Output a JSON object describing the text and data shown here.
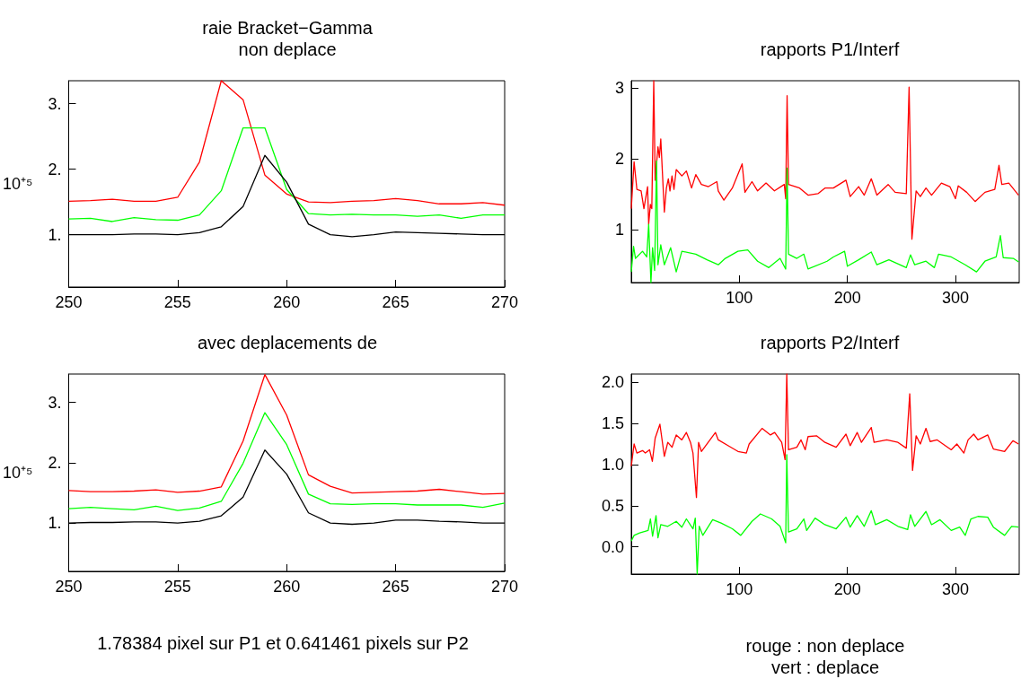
{
  "chart_data": [
    {
      "type": "line",
      "title": "raie Bracket−Gamma\nnon deplace",
      "ylabel": "10⁺⁵",
      "marker": "none",
      "x": [
        250,
        251,
        252,
        253,
        254,
        255,
        256,
        257,
        258,
        259,
        260,
        261,
        262,
        263,
        264,
        265,
        266,
        267,
        268,
        269,
        270
      ],
      "xlim": [
        250,
        270
      ],
      "xticks": [
        250,
        255,
        260,
        265,
        270
      ],
      "ylim": [
        0.2,
        3.35
      ],
      "yticks": [
        {
          "value": 1,
          "label": "1."
        },
        {
          "value": 2,
          "label": "2."
        },
        {
          "value": 3,
          "label": "3."
        }
      ],
      "series": [
        {
          "color": "#ff0000",
          "values": [
            1.51,
            1.52,
            1.54,
            1.51,
            1.51,
            1.57,
            2.11,
            3.35,
            3.06,
            1.91,
            1.62,
            1.5,
            1.49,
            1.51,
            1.52,
            1.55,
            1.52,
            1.47,
            1.47,
            1.49,
            1.45
          ]
        },
        {
          "color": "#00ff00",
          "values": [
            1.24,
            1.25,
            1.2,
            1.26,
            1.23,
            1.22,
            1.3,
            1.67,
            2.63,
            2.63,
            1.69,
            1.32,
            1.3,
            1.31,
            1.3,
            1.3,
            1.28,
            1.3,
            1.25,
            1.3,
            1.3
          ]
        },
        {
          "color": "#000000",
          "values": [
            1.0,
            1.0,
            1.0,
            1.01,
            1.01,
            1.0,
            1.03,
            1.12,
            1.43,
            2.21,
            1.8,
            1.16,
            1.0,
            0.97,
            1.0,
            1.04,
            1.03,
            1.02,
            1.01,
            1.0,
            1.0
          ]
        }
      ]
    },
    {
      "type": "line",
      "title": "rapports P1/Interf",
      "marker": "none",
      "xlim": [
        0,
        359
      ],
      "xticks": [
        100,
        200,
        300
      ],
      "ylim": [
        0.26,
        3.1
      ],
      "yticks": [
        1,
        2,
        3
      ],
      "series": [
        {
          "color": "#ff0000",
          "x": [
            0,
            2.6,
            5.2,
            9.1,
            11.7,
            15.1,
            16.1,
            17.7,
            19,
            20.8,
            22.1,
            24.7,
            26,
            27.3,
            30.6,
            32.5,
            34.3,
            35.8,
            37.7,
            39.5,
            41.6,
            46.8,
            51,
            55.8,
            59.7,
            64.9,
            71.4,
            79.2,
            80.5,
            85.7,
            93.5,
            102.6,
            105.2,
            111.7,
            116.9,
            124.7,
            132.5,
            141.6,
            142.9,
            144.2,
            145.5,
            155.8,
            163.6,
            172.7,
            179.2,
            187,
            198.7,
            202.6,
            210.4,
            215.6,
            222.1,
            227.3,
            237.7,
            244.2,
            254.5,
            257.1,
            259.7,
            263.6,
            267.5,
            272.7,
            277.9,
            287,
            294.8,
            300,
            302.6,
            310.4,
            318.2,
            327.3,
            336.4,
            340.3,
            342.9,
            349.4,
            358.4
          ],
          "values": [
            1.3,
            1.96,
            1.57,
            1.55,
            1.3,
            1.61,
            1.08,
            1.36,
            1.3,
            3.1,
            1.7,
            2.17,
            2.02,
            2.28,
            1.25,
            1.59,
            1.72,
            1.55,
            1.76,
            1.57,
            1.85,
            1.76,
            1.83,
            1.59,
            1.78,
            1.64,
            1.61,
            1.68,
            1.55,
            1.42,
            1.59,
            1.93,
            1.53,
            1.68,
            1.55,
            1.66,
            1.55,
            1.64,
            1.44,
            2.89,
            1.64,
            1.59,
            1.49,
            1.51,
            1.59,
            1.59,
            1.7,
            1.47,
            1.61,
            1.49,
            1.72,
            1.49,
            1.64,
            1.53,
            1.51,
            3.01,
            0.87,
            1.55,
            1.47,
            1.59,
            1.49,
            1.66,
            1.61,
            1.44,
            1.62,
            1.53,
            1.4,
            1.53,
            1.57,
            1.91,
            1.64,
            1.66,
            1.49
          ]
        },
        {
          "color": "#00ff00",
          "x": [
            0,
            2.1,
            3.9,
            10.4,
            14.3,
            16.1,
            18.2,
            19.7,
            21.6,
            23.4,
            24.7,
            27.3,
            30.6,
            36.4,
            41.6,
            46.8,
            59.7,
            70.1,
            80.5,
            87,
            98.7,
            107.8,
            116.9,
            127.3,
            137.7,
            142.9,
            144.2,
            145.5,
            153.2,
            159.7,
            163.6,
            181.2,
            187,
            197.4,
            200,
            210.4,
            222.1,
            227.3,
            238.4,
            254.5,
            258.4,
            262.3,
            272.7,
            280.5,
            284.4,
            296.1,
            309.1,
            319.5,
            327.3,
            337.7,
            341.6,
            344.2,
            353.5,
            358.4
          ],
          "values": [
            0.41,
            0.77,
            0.6,
            0.7,
            0.62,
            1.08,
            0.26,
            0.75,
            0.43,
            1.97,
            0.51,
            0.79,
            0.51,
            0.75,
            0.41,
            0.7,
            0.66,
            0.58,
            0.51,
            0.6,
            0.7,
            0.72,
            0.56,
            0.47,
            0.6,
            0.45,
            1.87,
            0.66,
            0.6,
            0.66,
            0.45,
            0.56,
            0.62,
            0.7,
            0.49,
            0.58,
            0.69,
            0.51,
            0.58,
            0.47,
            0.65,
            0.51,
            0.56,
            0.47,
            0.66,
            0.62,
            0.51,
            0.41,
            0.56,
            0.62,
            0.92,
            0.61,
            0.6,
            0.55
          ]
        }
      ]
    },
    {
      "type": "line",
      "title": "avec deplacements de",
      "ylabel": "10⁺⁵",
      "marker": "none",
      "annotations": [
        "1.78384 pixel sur P1 et 0.641461 pixels sur P2"
      ],
      "x": [
        250,
        251,
        252,
        253,
        254,
        255,
        256,
        257,
        258,
        259,
        260,
        261,
        262,
        263,
        264,
        265,
        266,
        267,
        268,
        269,
        270
      ],
      "xlim": [
        250,
        270
      ],
      "xticks": [
        250,
        255,
        260,
        265,
        270
      ],
      "ylim": [
        0.2,
        3.47
      ],
      "yticks": [
        {
          "value": 1,
          "label": "1."
        },
        {
          "value": 2,
          "label": "2."
        },
        {
          "value": 3,
          "label": "3."
        }
      ],
      "series": [
        {
          "color": "#ff0000",
          "values": [
            1.54,
            1.52,
            1.52,
            1.53,
            1.55,
            1.51,
            1.53,
            1.6,
            2.36,
            3.46,
            2.79,
            1.8,
            1.61,
            1.5,
            1.51,
            1.52,
            1.53,
            1.56,
            1.52,
            1.48,
            1.49
          ]
        },
        {
          "color": "#00ff00",
          "values": [
            1.24,
            1.26,
            1.24,
            1.22,
            1.28,
            1.21,
            1.25,
            1.36,
            1.99,
            2.83,
            2.3,
            1.48,
            1.32,
            1.31,
            1.32,
            1.32,
            1.3,
            1.3,
            1.3,
            1.26,
            1.33
          ]
        },
        {
          "color": "#000000",
          "values": [
            1.0,
            1.01,
            1.01,
            1.02,
            1.02,
            1.0,
            1.03,
            1.12,
            1.43,
            2.21,
            1.81,
            1.17,
            1.0,
            0.98,
            1.0,
            1.05,
            1.05,
            1.03,
            1.02,
            1.0,
            1.0
          ]
        }
      ]
    },
    {
      "type": "line",
      "title": "rapports P2/Interf",
      "marker": "none",
      "annotations": [
        "rouge : non deplace\nvert : deplace"
      ],
      "xlim": [
        0,
        359
      ],
      "xticks": [
        100,
        200,
        300
      ],
      "ylim": [
        -0.33,
        2.1
      ],
      "yticks": [
        {
          "value": 0,
          "label": "0.0"
        },
        {
          "value": 0.5,
          "label": "0.5"
        },
        {
          "value": 1,
          "label": "1.0"
        },
        {
          "value": 1.5,
          "label": "1.5"
        },
        {
          "value": 2,
          "label": "2.0"
        }
      ],
      "series": [
        {
          "color": "#ff0000",
          "x": [
            0,
            2.6,
            5.2,
            10.4,
            13,
            16.9,
            19.5,
            22.1,
            26.5,
            30.6,
            33.8,
            37.7,
            41.6,
            46.8,
            51,
            54.8,
            57.1,
            60.3,
            62.3,
            64.9,
            77.9,
            80.5,
            90.9,
            98.7,
            106.5,
            109.1,
            121,
            128.8,
            132.7,
            139.2,
            142.3,
            143.9,
            145.5,
            153.2,
            157.1,
            161,
            163.6,
            171.4,
            179.2,
            189.6,
            198.7,
            202.6,
            209.1,
            213,
            222.1,
            224.7,
            236.4,
            246.8,
            254.5,
            257.7,
            260.3,
            263.6,
            267.5,
            272.7,
            276.6,
            283.1,
            296.1,
            301.3,
            307.8,
            311.7,
            316.9,
            320.8,
            329.9,
            335.1,
            345.5,
            353.2,
            358.4
          ],
          "values": [
            0.98,
            1.25,
            1.14,
            1.17,
            1.14,
            1.18,
            1.04,
            1.32,
            1.49,
            1.1,
            1.27,
            1.21,
            1.36,
            1.3,
            1.39,
            1.27,
            1.14,
            0.6,
            1.27,
            1.16,
            1.39,
            1.3,
            1.22,
            1.16,
            1.14,
            1.25,
            1.44,
            1.36,
            1.39,
            1.27,
            1.06,
            2.1,
            1.18,
            1.21,
            1.3,
            1.18,
            1.34,
            1.35,
            1.27,
            1.21,
            1.37,
            1.23,
            1.39,
            1.27,
            1.45,
            1.27,
            1.3,
            1.27,
            1.2,
            1.86,
            0.93,
            1.35,
            1.25,
            1.44,
            1.28,
            1.3,
            1.18,
            1.25,
            1.14,
            1.3,
            1.37,
            1.3,
            1.36,
            1.19,
            1.16,
            1.29,
            1.25
          ]
        },
        {
          "color": "#00ff00",
          "x": [
            0,
            2.6,
            7.8,
            15.6,
            17.7,
            19.7,
            22.9,
            24.7,
            27.3,
            33.8,
            41.6,
            46.8,
            51,
            57.1,
            59.2,
            61,
            62.9,
            66.2,
            75.3,
            83.1,
            93.5,
            101.3,
            111.7,
            119.5,
            129.9,
            137.7,
            142.9,
            143.9,
            145.5,
            153.2,
            159.7,
            162.3,
            170.1,
            179.2,
            189.6,
            198.7,
            202.6,
            209.1,
            215.6,
            222.1,
            226,
            236.4,
            246.8,
            255.8,
            258.4,
            262.3,
            272.7,
            277.9,
            285.7,
            296.1,
            303.9,
            309.1,
            314.3,
            320.8,
            329.9,
            335.1,
            345.5,
            352,
            358.4
          ],
          "values": [
            0.07,
            0.14,
            0.17,
            0.2,
            0.34,
            0.13,
            0.38,
            0.11,
            0.27,
            0.25,
            0.31,
            0.24,
            0.34,
            0.22,
            0.35,
            -0.33,
            0.25,
            0.14,
            0.33,
            0.29,
            0.22,
            0.14,
            0.31,
            0.4,
            0.34,
            0.25,
            0.05,
            1.12,
            0.18,
            0.22,
            0.34,
            0.2,
            0.35,
            0.27,
            0.22,
            0.36,
            0.24,
            0.38,
            0.25,
            0.44,
            0.27,
            0.33,
            0.25,
            0.21,
            0.39,
            0.25,
            0.43,
            0.27,
            0.33,
            0.2,
            0.24,
            0.14,
            0.34,
            0.37,
            0.36,
            0.24,
            0.14,
            0.25,
            0.24
          ]
        }
      ]
    }
  ]
}
